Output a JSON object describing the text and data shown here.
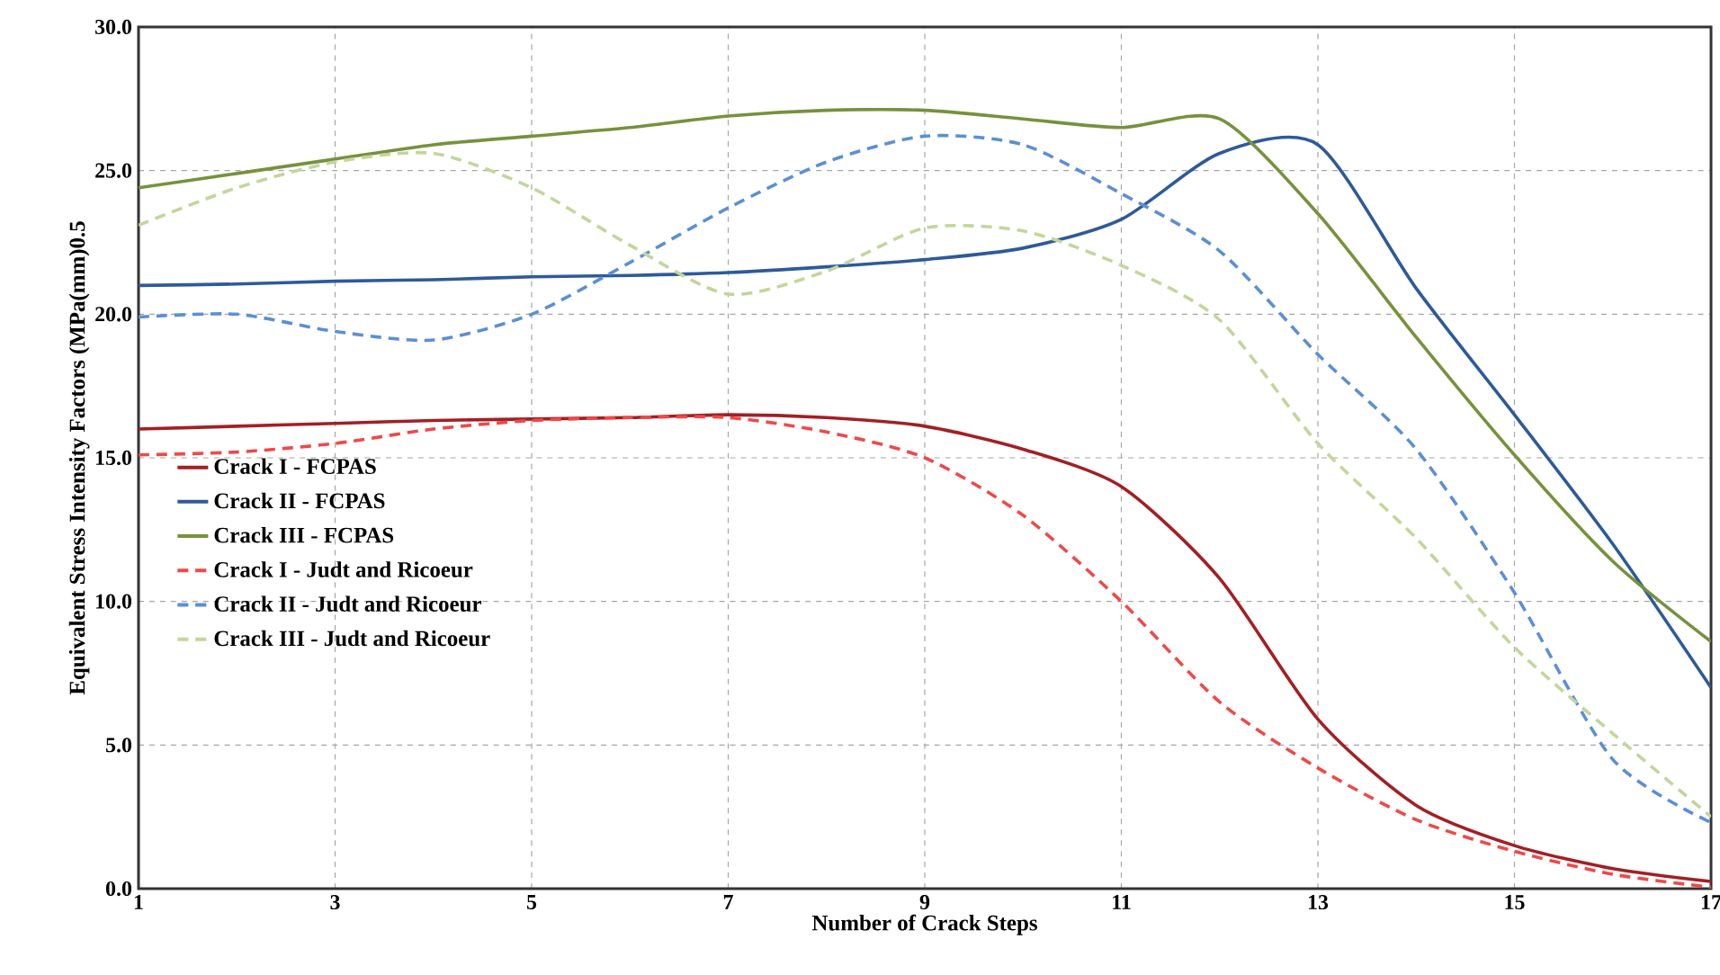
{
  "chart_data": {
    "type": "line",
    "xlabel": "Number of Crack Steps",
    "ylabel": "Equivalent Stress Intensity Factors (MPa(mm)0.5",
    "x": [
      1,
      2,
      3,
      4,
      5,
      6,
      7,
      8,
      9,
      10,
      11,
      12,
      13,
      14,
      15,
      16,
      17
    ],
    "xlim": [
      1,
      17
    ],
    "xticks": [
      1,
      3,
      5,
      7,
      9,
      11,
      13,
      15,
      17
    ],
    "ylim": [
      0,
      30
    ],
    "yticks": [
      {
        "value": 0,
        "label": "0.0"
      },
      {
        "value": 5,
        "label": "5.0"
      },
      {
        "value": 10,
        "label": "10.0"
      },
      {
        "value": 15,
        "label": "15.0"
      },
      {
        "value": 20,
        "label": "20.0"
      },
      {
        "value": 25,
        "label": "25.0"
      },
      {
        "value": 30,
        "label": "30.0"
      }
    ],
    "grid": true,
    "legend": "left",
    "marker": "none",
    "series": [
      {
        "name": "Crack I - FCPAS",
        "color": "#a31f24",
        "line_style": "solid",
        "values": [
          16.0,
          16.1,
          16.2,
          16.3,
          16.35,
          16.4,
          16.5,
          16.4,
          16.1,
          15.3,
          14.0,
          10.8,
          5.9,
          2.9,
          1.5,
          0.7,
          0.25
        ]
      },
      {
        "name": "Crack II - FCPAS",
        "color": "#2e5a9a",
        "line_style": "solid",
        "values": [
          21.0,
          21.05,
          21.15,
          21.2,
          21.3,
          21.35,
          21.45,
          21.65,
          21.9,
          22.3,
          23.3,
          25.6,
          25.9,
          20.9,
          16.5,
          12.0,
          7.0
        ]
      },
      {
        "name": "Crack III - FCPAS",
        "color": "#76923c",
        "line_style": "solid",
        "values": [
          24.4,
          24.9,
          25.4,
          25.9,
          26.2,
          26.5,
          26.9,
          27.1,
          27.1,
          26.8,
          26.5,
          26.8,
          23.5,
          19.2,
          15.1,
          11.4,
          8.6
        ]
      },
      {
        "name": "Crack I - Judt and Ricoeur",
        "color": "#f04848",
        "line_style": "dashed",
        "values": [
          15.1,
          15.2,
          15.5,
          16.0,
          16.3,
          16.4,
          16.4,
          15.9,
          15.0,
          13.0,
          10.0,
          6.5,
          4.2,
          2.4,
          1.3,
          0.5,
          0.05
        ]
      },
      {
        "name": "Crack II - Judt and Ricoeur",
        "color": "#5b8fd6",
        "line_style": "dashed",
        "values": [
          19.9,
          20.0,
          19.4,
          19.1,
          20.0,
          21.8,
          23.7,
          25.3,
          26.2,
          25.9,
          24.2,
          22.2,
          18.6,
          15.3,
          10.3,
          4.5,
          2.3
        ]
      },
      {
        "name": "Crack III - Judt and Ricoeur",
        "color": "#c3d69b",
        "line_style": "dashed",
        "values": [
          23.1,
          24.4,
          25.3,
          25.6,
          24.4,
          22.4,
          20.7,
          21.5,
          23.0,
          22.9,
          21.7,
          19.8,
          15.5,
          12.2,
          8.4,
          5.4,
          2.5
        ]
      }
    ]
  }
}
